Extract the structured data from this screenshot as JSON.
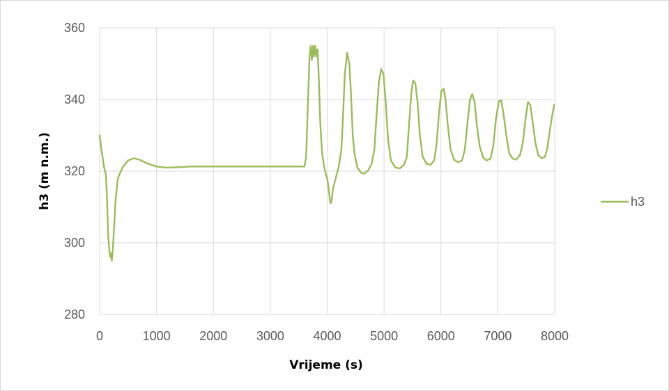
{
  "chart_data": {
    "type": "line",
    "title": "",
    "xlabel": "Vrijeme (s)",
    "ylabel": "h3 (m n.m.)",
    "xlim": [
      0,
      8000
    ],
    "ylim": [
      280,
      360
    ],
    "x_ticks": [
      "0",
      "1000",
      "2000",
      "3000",
      "4000",
      "5000",
      "6000",
      "7000",
      "8000"
    ],
    "y_ticks": [
      "280",
      "300",
      "320",
      "340",
      "360"
    ],
    "grid": true,
    "legend_position": "right",
    "series": [
      {
        "name": "h3",
        "color": "#9bbb59",
        "points": [
          [
            0,
            330
          ],
          [
            40,
            325
          ],
          [
            80,
            321
          ],
          [
            110,
            319
          ],
          [
            130,
            312
          ],
          [
            150,
            302
          ],
          [
            170,
            298
          ],
          [
            185,
            296
          ],
          [
            200,
            297
          ],
          [
            215,
            295
          ],
          [
            230,
            298
          ],
          [
            250,
            303
          ],
          [
            280,
            312
          ],
          [
            320,
            318
          ],
          [
            400,
            321
          ],
          [
            500,
            323
          ],
          [
            600,
            323.6
          ],
          [
            700,
            323.2
          ],
          [
            800,
            322.4
          ],
          [
            900,
            321.8
          ],
          [
            1000,
            321.3
          ],
          [
            1100,
            321.1
          ],
          [
            1200,
            321.0
          ],
          [
            1400,
            321.1
          ],
          [
            1600,
            321.3
          ],
          [
            2000,
            321.3
          ],
          [
            2500,
            321.3
          ],
          [
            3000,
            321.3
          ],
          [
            3500,
            321.3
          ],
          [
            3600,
            321.3
          ],
          [
            3630,
            324
          ],
          [
            3660,
            338
          ],
          [
            3690,
            352
          ],
          [
            3710,
            355
          ],
          [
            3730,
            351
          ],
          [
            3750,
            355
          ],
          [
            3770,
            352
          ],
          [
            3790,
            355
          ],
          [
            3810,
            352
          ],
          [
            3830,
            354
          ],
          [
            3850,
            347
          ],
          [
            3880,
            333
          ],
          [
            3910,
            325
          ],
          [
            3950,
            321
          ],
          [
            3980,
            319
          ],
          [
            4000,
            318
          ],
          [
            4020,
            316
          ],
          [
            4040,
            313
          ],
          [
            4060,
            311
          ],
          [
            4080,
            312
          ],
          [
            4100,
            315
          ],
          [
            4150,
            318
          ],
          [
            4200,
            321
          ],
          [
            4250,
            326
          ],
          [
            4280,
            336
          ],
          [
            4310,
            347
          ],
          [
            4350,
            353
          ],
          [
            4390,
            350
          ],
          [
            4420,
            341
          ],
          [
            4450,
            330
          ],
          [
            4480,
            325
          ],
          [
            4530,
            321
          ],
          [
            4600,
            319.5
          ],
          [
            4650,
            319.3
          ],
          [
            4720,
            320.2
          ],
          [
            4780,
            322
          ],
          [
            4830,
            326
          ],
          [
            4870,
            336
          ],
          [
            4910,
            345
          ],
          [
            4950,
            348.5
          ],
          [
            4990,
            347
          ],
          [
            5030,
            339
          ],
          [
            5070,
            329
          ],
          [
            5120,
            323
          ],
          [
            5200,
            321
          ],
          [
            5280,
            320.8
          ],
          [
            5350,
            321.8
          ],
          [
            5400,
            324
          ],
          [
            5440,
            333
          ],
          [
            5480,
            342
          ],
          [
            5510,
            345.3
          ],
          [
            5550,
            344.5
          ],
          [
            5590,
            339
          ],
          [
            5630,
            330
          ],
          [
            5680,
            324
          ],
          [
            5750,
            322
          ],
          [
            5820,
            321.8
          ],
          [
            5880,
            323
          ],
          [
            5920,
            327
          ],
          [
            5970,
            337
          ],
          [
            6010,
            342.5
          ],
          [
            6050,
            343
          ],
          [
            6080,
            340
          ],
          [
            6120,
            333
          ],
          [
            6170,
            326
          ],
          [
            6230,
            323.2
          ],
          [
            6300,
            322.5
          ],
          [
            6370,
            323
          ],
          [
            6420,
            326
          ],
          [
            6470,
            334
          ],
          [
            6510,
            340
          ],
          [
            6550,
            341.5
          ],
          [
            6590,
            339.5
          ],
          [
            6630,
            333
          ],
          [
            6680,
            327
          ],
          [
            6740,
            323.8
          ],
          [
            6800,
            323
          ],
          [
            6870,
            323.5
          ],
          [
            6920,
            327
          ],
          [
            6970,
            335
          ],
          [
            7020,
            339.5
          ],
          [
            7060,
            339.8
          ],
          [
            7100,
            336
          ],
          [
            7150,
            330
          ],
          [
            7200,
            325
          ],
          [
            7260,
            323.5
          ],
          [
            7320,
            323.2
          ],
          [
            7390,
            324.5
          ],
          [
            7440,
            328
          ],
          [
            7490,
            335
          ],
          [
            7530,
            339.3
          ],
          [
            7570,
            338.5
          ],
          [
            7610,
            334
          ],
          [
            7660,
            328
          ],
          [
            7710,
            324.5
          ],
          [
            7770,
            323.6
          ],
          [
            7830,
            324
          ],
          [
            7870,
            326.5
          ],
          [
            7910,
            331
          ],
          [
            7950,
            335
          ],
          [
            7990,
            338.5
          ]
        ]
      }
    ]
  }
}
